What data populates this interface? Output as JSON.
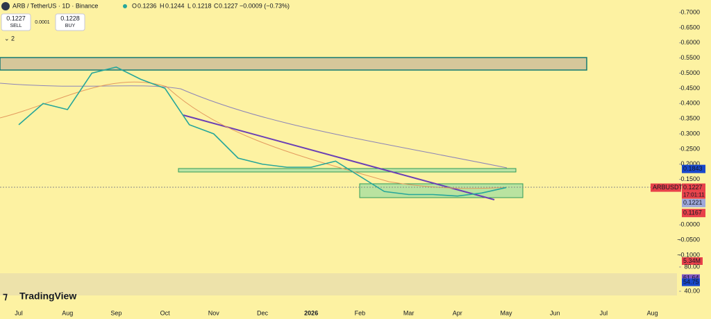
{
  "header": {
    "symbol": "ARB / TetherUS · 1D · Binance",
    "open_label": "O",
    "open": 0.1236,
    "high_label": "H",
    "high": 0.1244,
    "low_label": "L",
    "low": 0.1218,
    "close_label": "C",
    "close": 0.1227,
    "change": "−0.0009 (−0.73%)"
  },
  "trade": {
    "sell_price": 0.1227,
    "sell": "SELL",
    "spread": 0.0001,
    "buy_price": 0.1228,
    "buy": "BUY",
    "indicators_count": 2
  },
  "chart_data": {
    "type": "line",
    "color": "#26a69a",
    "categories": [
      "Jul",
      null,
      "Aug",
      null,
      "Sep",
      null,
      "Oct",
      null,
      "Nov",
      null,
      "Dec",
      null,
      "2026",
      null,
      "Feb",
      null,
      "Mar",
      null,
      "Apr",
      null,
      "May",
      null,
      "Jun",
      null,
      "Jul",
      null,
      "Aug",
      null
    ],
    "values": [
      0.33,
      0.4,
      0.38,
      0.5,
      0.52,
      0.48,
      0.45,
      0.33,
      0.3,
      0.22,
      0.2,
      0.19,
      0.19,
      0.21,
      0.16,
      0.11,
      0.1,
      0.1,
      0.095,
      0.105,
      0.123,
      null,
      null,
      null,
      null,
      null,
      null,
      null
    ],
    "ylim": [
      -0.1,
      0.7
    ],
    "yticks": [
      {
        "value": 0.7,
        "label": "0.7000"
      },
      {
        "value": 0.65,
        "label": "0.6500"
      },
      {
        "value": 0.6,
        "label": "0.6000"
      },
      {
        "value": 0.55,
        "label": "0.5500"
      },
      {
        "value": 0.5,
        "label": "0.5000"
      },
      {
        "value": 0.45,
        "label": "0.4500"
      },
      {
        "value": 0.4,
        "label": "0.4000"
      },
      {
        "value": 0.35,
        "label": "0.3500"
      },
      {
        "value": 0.3,
        "label": "0.3000"
      },
      {
        "value": 0.25,
        "label": "0.2500"
      },
      {
        "value": 0.2,
        "label": "0.2000"
      },
      {
        "value": 0.15,
        "label": "0.1500"
      },
      {
        "value": 0,
        "label": "0.0000"
      },
      {
        "value": -0.05,
        "label": "−0.0500"
      },
      {
        "value": -0.1,
        "label": "−0.1000"
      }
    ],
    "price_tags": [
      {
        "value": 0.1843,
        "color": "#1848cc"
      },
      {
        "value": 0.1227,
        "color": "#e8414a"
      },
      {
        "value": 0.1221,
        "color": "#9fa8da"
      },
      {
        "value": 0.1167,
        "color": "#e8414a"
      }
    ],
    "symbol_tag": "ARBUSDT",
    "countdown": "17:01:11",
    "volume": "5.34M",
    "rsi": {
      "ylim": [
        40,
        80
      ],
      "yticks": [
        {
          "value": 80,
          "label": "80.00"
        },
        {
          "value": 40,
          "label": "40.00"
        }
      ],
      "value": 61.64,
      "ma": 54.75
    }
  },
  "branding": "TradingView"
}
